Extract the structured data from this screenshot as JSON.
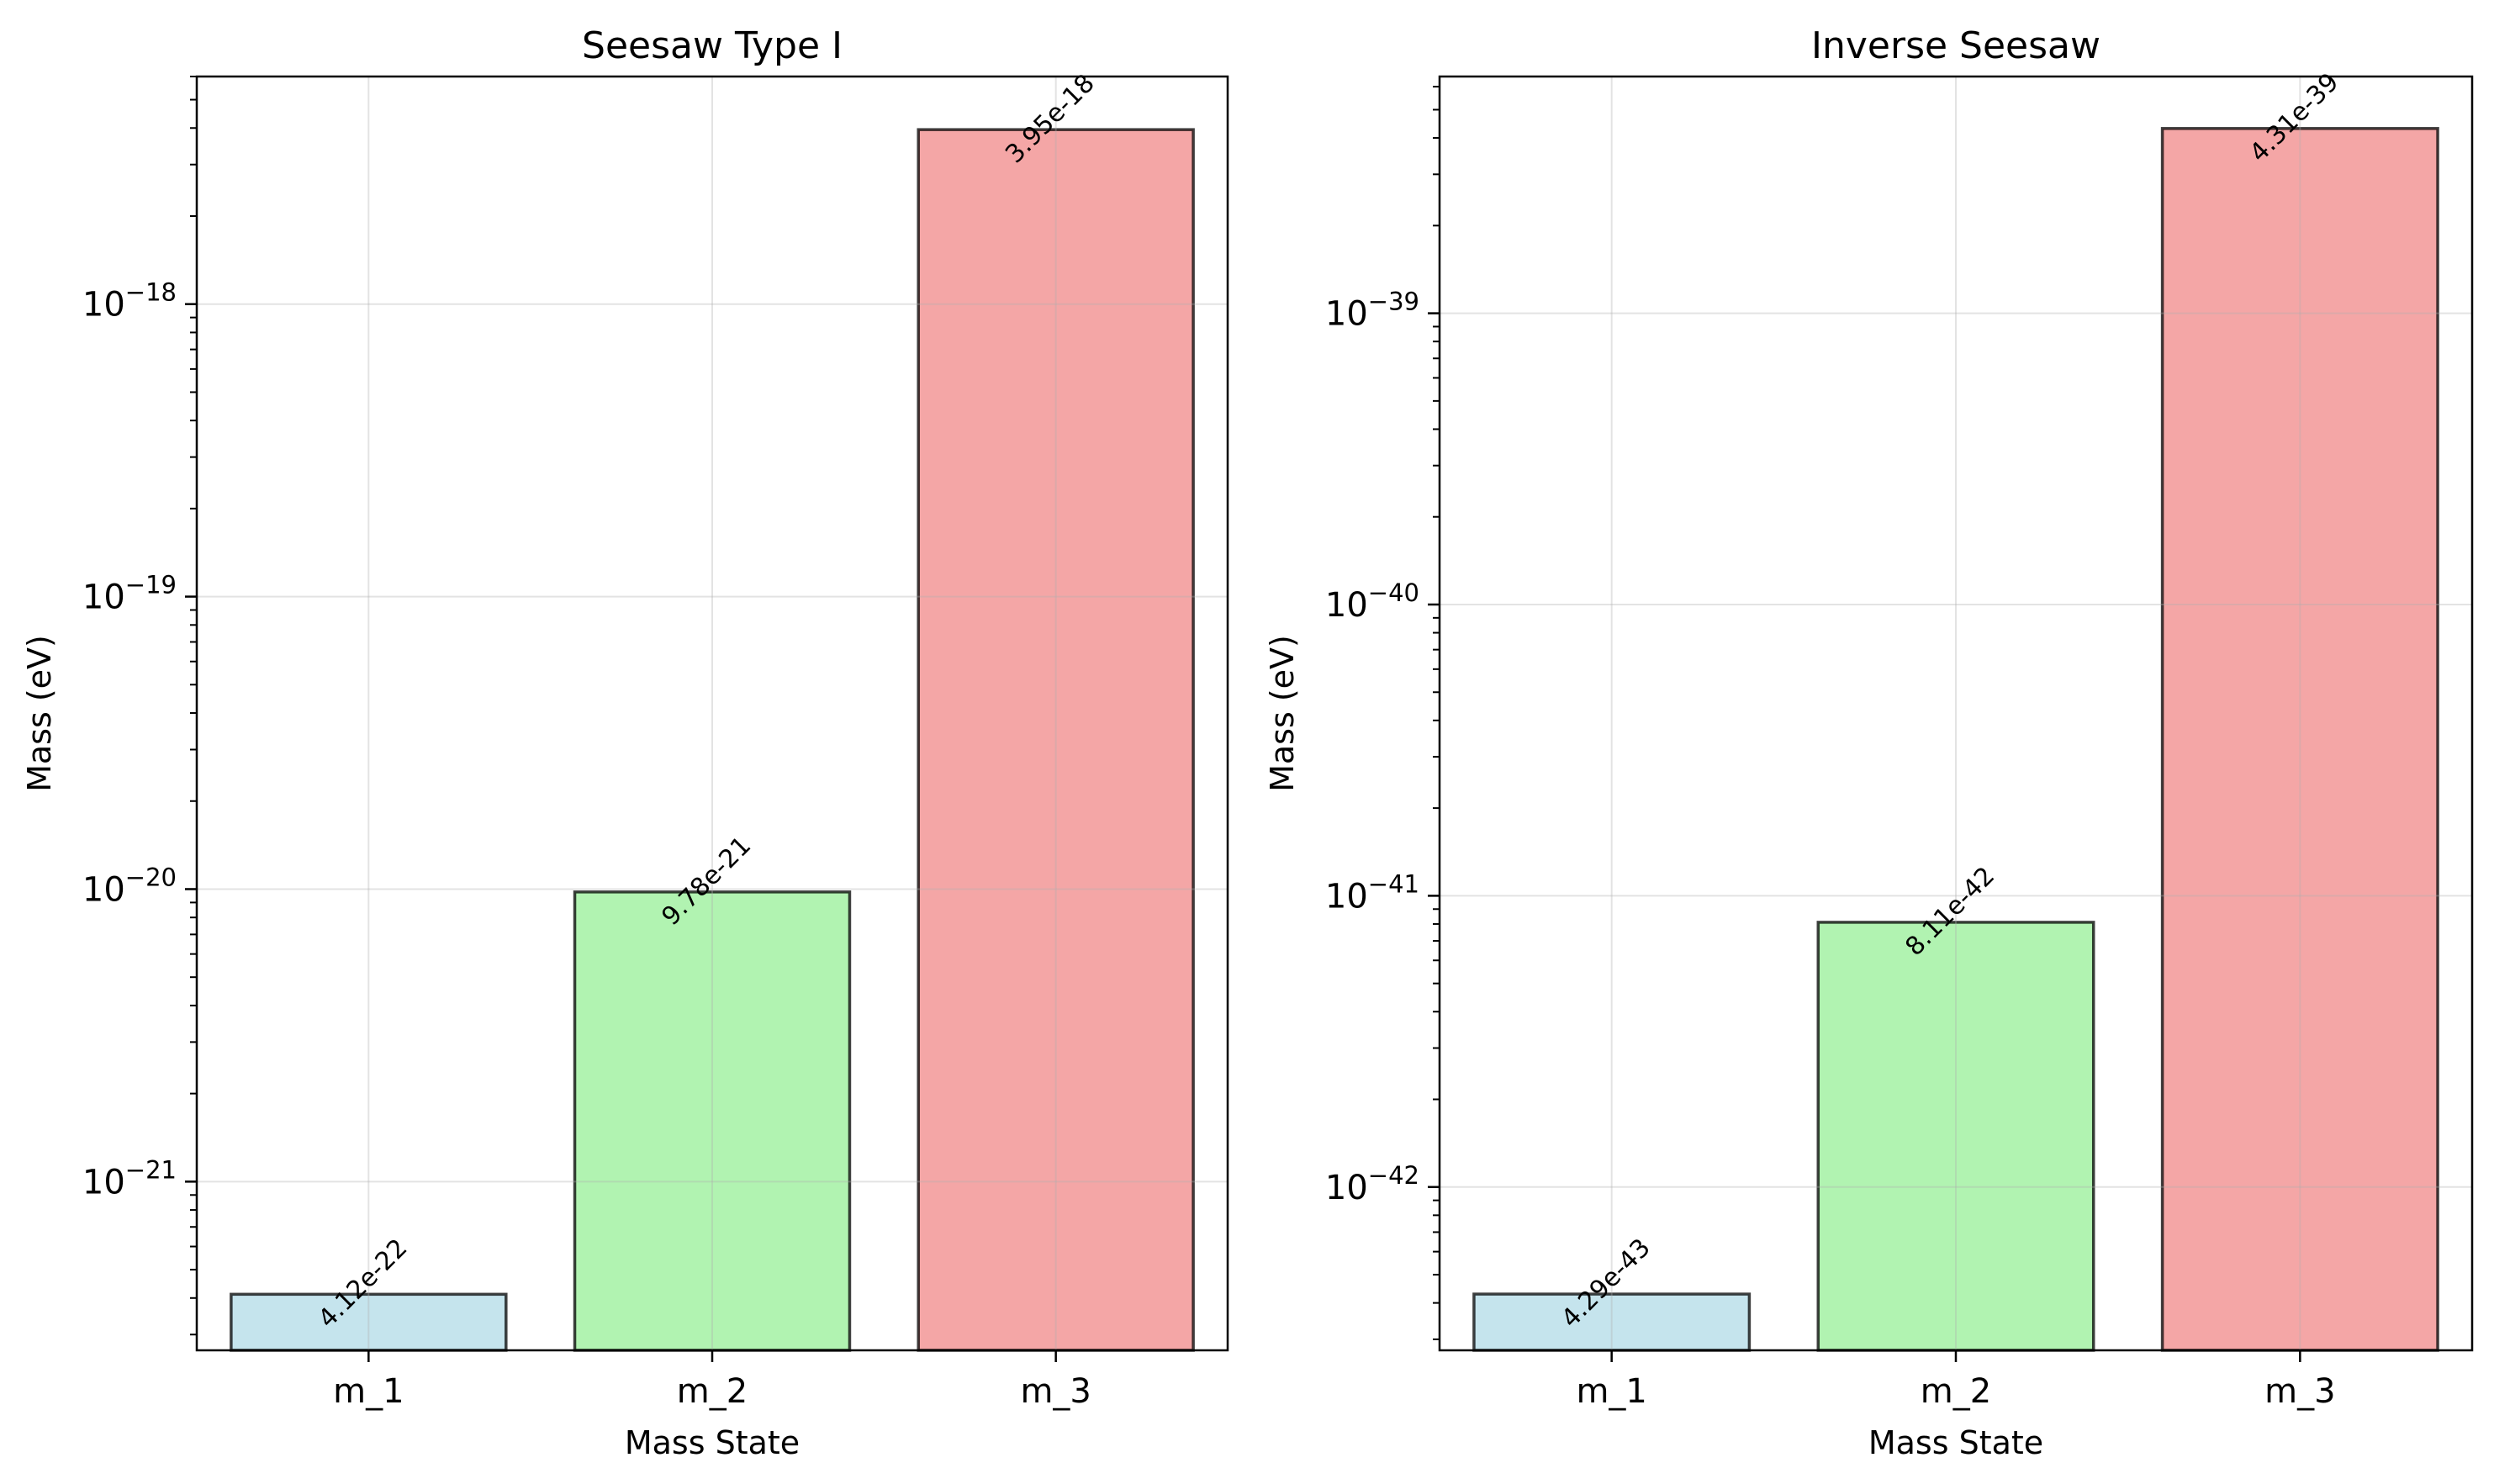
{
  "chart_data": [
    {
      "type": "bar",
      "title": "Seesaw Type I",
      "xlabel": "Mass State",
      "ylabel": "Mass (eV)",
      "yscale": "log",
      "ylim": [
        2.65e-22,
        6e-18
      ],
      "ytick_exponents": [
        -18,
        -19,
        -20,
        -21
      ],
      "categories": [
        "m_1",
        "m_2",
        "m_3"
      ],
      "values": [
        4.12e-22,
        9.78e-21,
        3.95e-18
      ],
      "data_labels": [
        "4.12e-22",
        "9.78e-21",
        "3.95e-18"
      ],
      "colors": [
        "#add8e6",
        "#90ee90",
        "#f08080"
      ],
      "grid": true
    },
    {
      "type": "bar",
      "title": "Inverse Seesaw",
      "xlabel": "Mass State",
      "ylabel": "Mass (eV)",
      "yscale": "log",
      "ylim": [
        2.75e-43,
        6.5e-39
      ],
      "ytick_exponents": [
        -39,
        -40,
        -41,
        -42
      ],
      "categories": [
        "m_1",
        "m_2",
        "m_3"
      ],
      "values": [
        4.29e-43,
        8.11e-42,
        4.31e-39
      ],
      "data_labels": [
        "4.29e-43",
        "8.11e-42",
        "4.31e-39"
      ],
      "colors": [
        "#add8e6",
        "#90ee90",
        "#f08080"
      ],
      "grid": true
    }
  ]
}
